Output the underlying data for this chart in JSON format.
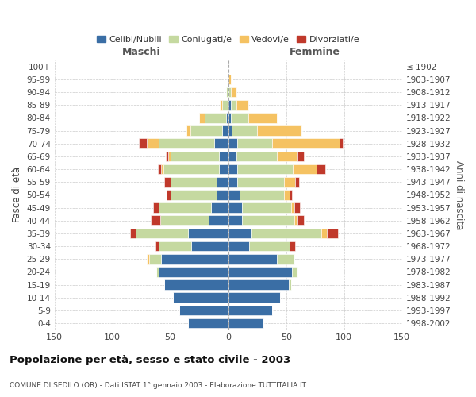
{
  "age_groups": [
    "0-4",
    "5-9",
    "10-14",
    "15-19",
    "20-24",
    "25-29",
    "30-34",
    "35-39",
    "40-44",
    "45-49",
    "50-54",
    "55-59",
    "60-64",
    "65-69",
    "70-74",
    "75-79",
    "80-84",
    "85-89",
    "90-94",
    "95-99",
    "100+"
  ],
  "birth_years": [
    "1998-2002",
    "1993-1997",
    "1988-1992",
    "1983-1987",
    "1978-1982",
    "1973-1977",
    "1968-1972",
    "1963-1967",
    "1958-1962",
    "1953-1957",
    "1948-1952",
    "1943-1947",
    "1938-1942",
    "1933-1937",
    "1928-1932",
    "1923-1927",
    "1918-1922",
    "1913-1917",
    "1908-1912",
    "1903-1907",
    "≤ 1902"
  ],
  "males": {
    "celibi": [
      35,
      42,
      48,
      55,
      60,
      58,
      32,
      35,
      17,
      15,
      10,
      10,
      8,
      8,
      12,
      5,
      2,
      0,
      0,
      0,
      0
    ],
    "coniugati": [
      0,
      0,
      0,
      0,
      2,
      10,
      28,
      45,
      42,
      45,
      40,
      40,
      48,
      42,
      48,
      28,
      18,
      5,
      2,
      0,
      0
    ],
    "vedovi": [
      0,
      0,
      0,
      0,
      0,
      2,
      0,
      0,
      0,
      0,
      0,
      0,
      2,
      2,
      10,
      3,
      5,
      2,
      0,
      0,
      0
    ],
    "divorziati": [
      0,
      0,
      0,
      0,
      0,
      0,
      3,
      5,
      8,
      5,
      3,
      5,
      3,
      2,
      7,
      0,
      0,
      0,
      0,
      0,
      0
    ]
  },
  "females": {
    "nubili": [
      30,
      38,
      45,
      52,
      55,
      42,
      18,
      20,
      12,
      12,
      10,
      8,
      8,
      7,
      8,
      3,
      2,
      2,
      0,
      0,
      0
    ],
    "coniugate": [
      0,
      0,
      0,
      2,
      5,
      15,
      35,
      60,
      45,
      42,
      38,
      40,
      48,
      35,
      30,
      22,
      15,
      5,
      2,
      0,
      0
    ],
    "vedove": [
      0,
      0,
      0,
      0,
      0,
      0,
      0,
      5,
      3,
      3,
      5,
      10,
      20,
      18,
      58,
      38,
      25,
      10,
      5,
      2,
      0
    ],
    "divorziate": [
      0,
      0,
      0,
      0,
      0,
      0,
      5,
      10,
      5,
      5,
      2,
      3,
      8,
      5,
      3,
      0,
      0,
      0,
      0,
      0,
      0
    ]
  },
  "colors": {
    "celibi": "#3A6EA5",
    "coniugati": "#C5D9A0",
    "vedovi": "#F5C262",
    "divorziati": "#C0392B"
  },
  "title": "Popolazione per età, sesso e stato civile - 2003",
  "subtitle": "COMUNE DI SEDILO (OR) - Dati ISTAT 1° gennaio 2003 - Elaborazione TUTTITALIA.IT",
  "label_maschi": "Maschi",
  "label_femmine": "Femmine",
  "ylabel_left": "Fasce di età",
  "ylabel_right": "Anni di nascita",
  "xlim": 150,
  "legend_labels": [
    "Celibi/Nubili",
    "Coniugati/e",
    "Vedovi/e",
    "Divorziati/e"
  ]
}
